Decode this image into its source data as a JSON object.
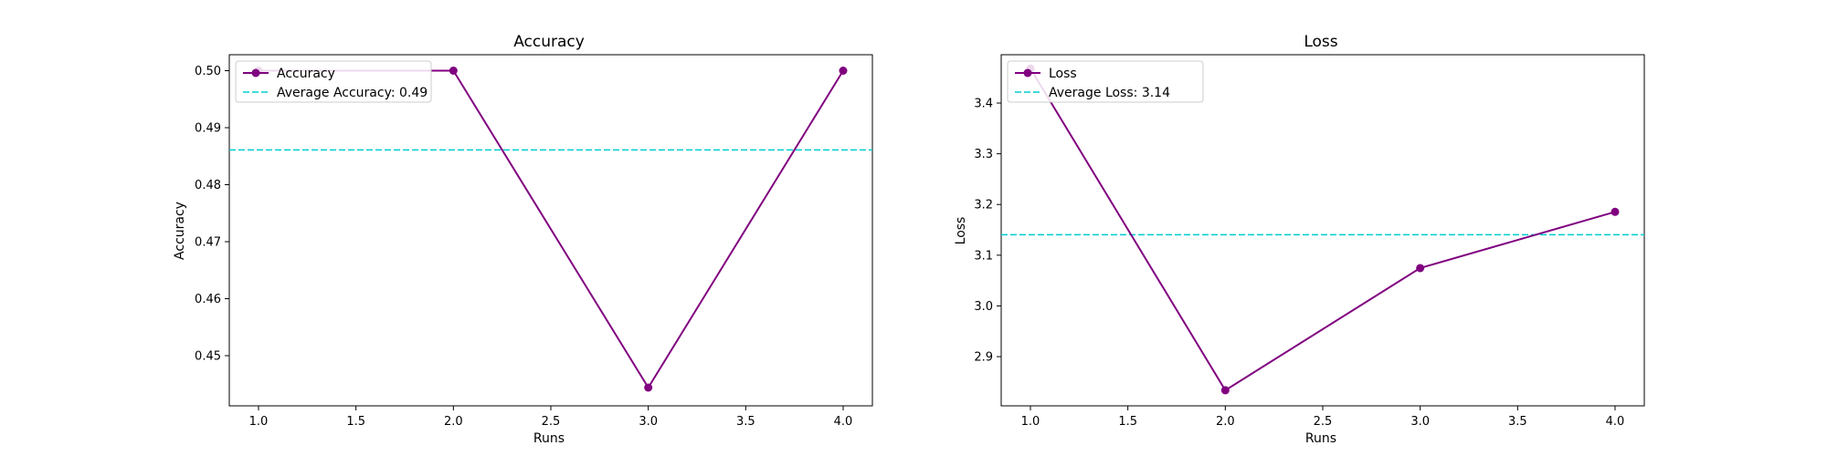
{
  "chart_data": [
    {
      "type": "line",
      "title": "Accuracy",
      "xlabel": "Runs",
      "ylabel": "Accuracy",
      "xlim": [
        0.85,
        4.15
      ],
      "ylim": [
        0.4412,
        0.5028
      ],
      "xticks": [
        "1.0",
        "1.5",
        "2.0",
        "2.5",
        "3.0",
        "3.5",
        "4.0"
      ],
      "yticks": [
        "0.45",
        "0.46",
        "0.47",
        "0.48",
        "0.49",
        "0.50"
      ],
      "x": [
        1,
        2,
        3,
        4
      ],
      "series": [
        {
          "name": "Accuracy",
          "values": [
            0.5,
            0.5,
            0.4444,
            0.5
          ],
          "color": "#800080",
          "marker": "circle"
        }
      ],
      "average": {
        "label": "Average Accuracy: 0.49",
        "value": 0.4861,
        "color": "#00CED1"
      },
      "grid": false,
      "legend_position": "top-left"
    },
    {
      "type": "line",
      "title": "Loss",
      "xlabel": "Runs",
      "ylabel": "Loss",
      "xlim": [
        0.85,
        4.15
      ],
      "ylim": [
        2.803,
        3.4953
      ],
      "xticks": [
        "1.0",
        "1.5",
        "2.0",
        "2.5",
        "3.0",
        "3.5",
        "4.0"
      ],
      "yticks": [
        "2.9",
        "3.0",
        "3.1",
        "3.2",
        "3.3",
        "3.4"
      ],
      "x": [
        1,
        2,
        3,
        4
      ],
      "series": [
        {
          "name": "Loss",
          "values": [
            3.468,
            2.8337,
            3.0746,
            3.1855
          ],
          "color": "#800080",
          "marker": "circle"
        }
      ],
      "average": {
        "label": "Average Loss: 3.14",
        "value": 3.1404,
        "color": "#00CED1"
      },
      "grid": false,
      "legend_position": "top-left"
    }
  ]
}
